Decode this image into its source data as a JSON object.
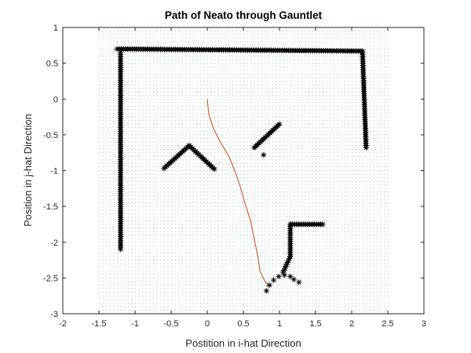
{
  "chart_data": {
    "type": "scatter",
    "title": "Path of Neato through Gauntlet",
    "xlabel": "Postition in i-hat Direction",
    "ylabel": "Position in j-hat Direction",
    "xlim": [
      -2,
      3
    ],
    "ylim": [
      -3,
      1
    ],
    "xticks": [
      -2,
      -1.5,
      -1,
      -0.5,
      0,
      0.5,
      1,
      1.5,
      2,
      2.5,
      3
    ],
    "xtick_labels": [
      "-2",
      "-1.5",
      "-1",
      "-0.5",
      "0",
      "0.5",
      "1",
      "1.5",
      "2",
      "2.5",
      "3"
    ],
    "yticks": [
      1,
      0.5,
      0,
      -0.5,
      -1,
      -1.5,
      -2,
      -2.5,
      -3
    ],
    "ytick_labels": [
      "1",
      "0.5",
      "0",
      "-0.5",
      "-1",
      "-1.5",
      "-2",
      "-2.5",
      "-3"
    ],
    "grid": false,
    "colors": {
      "path": "#d95319",
      "markers": "#000000",
      "quiver": "#0072bd"
    },
    "quiver_field": {
      "x_range": [
        -1.5,
        2.5
      ],
      "y_range": [
        -2.95,
        0.95
      ],
      "spacing": 0.05
    },
    "series": [
      {
        "type": "scatter",
        "marker": "*",
        "segments": [
          {
            "from": [
              -1.25,
              0.7
            ],
            "to": [
              2.15,
              0.67
            ]
          },
          {
            "from": [
              -1.2,
              0.65
            ],
            "to": [
              -1.2,
              -2.1
            ]
          },
          {
            "from": [
              2.15,
              0.65
            ],
            "to": [
              2.2,
              -0.68
            ]
          },
          {
            "from": [
              -0.6,
              -0.97
            ],
            "to": [
              -0.25,
              -0.65
            ]
          },
          {
            "from": [
              -0.25,
              -0.65
            ],
            "to": [
              0.1,
              -0.98
            ]
          },
          {
            "from": [
              0.65,
              -0.68
            ],
            "to": [
              1.0,
              -0.35
            ]
          },
          {
            "from": [
              1.15,
              -1.75
            ],
            "to": [
              1.6,
              -1.75
            ]
          },
          {
            "from": [
              1.15,
              -1.75
            ],
            "to": [
              1.15,
              -2.2
            ]
          },
          {
            "from": [
              1.15,
              -2.2
            ],
            "to": [
              1.05,
              -2.42
            ]
          }
        ],
        "points": [
          [
            0.78,
            -0.78
          ],
          [
            0.82,
            -2.68
          ],
          [
            0.86,
            -2.6
          ],
          [
            0.92,
            -2.53
          ],
          [
            0.99,
            -2.48
          ],
          [
            1.07,
            -2.46
          ],
          [
            1.15,
            -2.48
          ],
          [
            1.2,
            -2.52
          ],
          [
            1.27,
            -2.56
          ]
        ]
      },
      {
        "type": "line",
        "points": [
          [
            0.0,
            0.0
          ],
          [
            0.02,
            -0.2
          ],
          [
            0.08,
            -0.4
          ],
          [
            0.18,
            -0.6
          ],
          [
            0.3,
            -0.8
          ],
          [
            0.38,
            -1.0
          ],
          [
            0.45,
            -1.2
          ],
          [
            0.52,
            -1.45
          ],
          [
            0.6,
            -1.7
          ],
          [
            0.65,
            -1.95
          ],
          [
            0.7,
            -2.2
          ],
          [
            0.73,
            -2.4
          ],
          [
            0.8,
            -2.55
          ],
          [
            0.85,
            -2.6
          ]
        ]
      }
    ]
  }
}
